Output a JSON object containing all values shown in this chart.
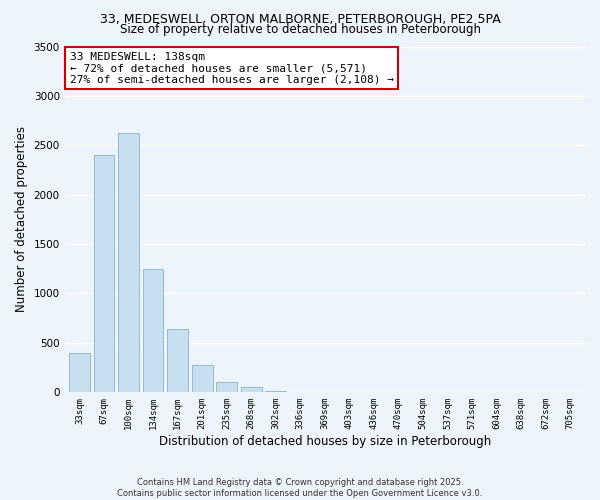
{
  "title_line1": "33, MEDESWELL, ORTON MALBORNE, PETERBOROUGH, PE2 5PA",
  "title_line2": "Size of property relative to detached houses in Peterborough",
  "xlabel": "Distribution of detached houses by size in Peterborough",
  "ylabel": "Number of detached properties",
  "categories": [
    "33sqm",
    "67sqm",
    "100sqm",
    "134sqm",
    "167sqm",
    "201sqm",
    "235sqm",
    "268sqm",
    "302sqm",
    "336sqm",
    "369sqm",
    "403sqm",
    "436sqm",
    "470sqm",
    "504sqm",
    "537sqm",
    "571sqm",
    "604sqm",
    "638sqm",
    "672sqm",
    "705sqm"
  ],
  "values": [
    390,
    2400,
    2620,
    1250,
    640,
    270,
    100,
    50,
    10,
    0,
    0,
    0,
    0,
    0,
    0,
    0,
    0,
    0,
    0,
    0,
    0
  ],
  "bar_color": "#c8dff0",
  "bar_edge_color": "#8ab4cc",
  "background_color": "#eef4fb",
  "ylim": [
    0,
    3500
  ],
  "yticks": [
    0,
    500,
    1000,
    1500,
    2000,
    2500,
    3000,
    3500
  ],
  "annotation_title": "33 MEDESWELL: 138sqm",
  "annotation_line2": "← 72% of detached houses are smaller (5,571)",
  "annotation_line3": "27% of semi-detached houses are larger (2,108) →",
  "annotation_box_color": "#ffffff",
  "annotation_box_edge": "#cc0000",
  "footer_line1": "Contains HM Land Registry data © Crown copyright and database right 2025.",
  "footer_line2": "Contains public sector information licensed under the Open Government Licence v3.0."
}
